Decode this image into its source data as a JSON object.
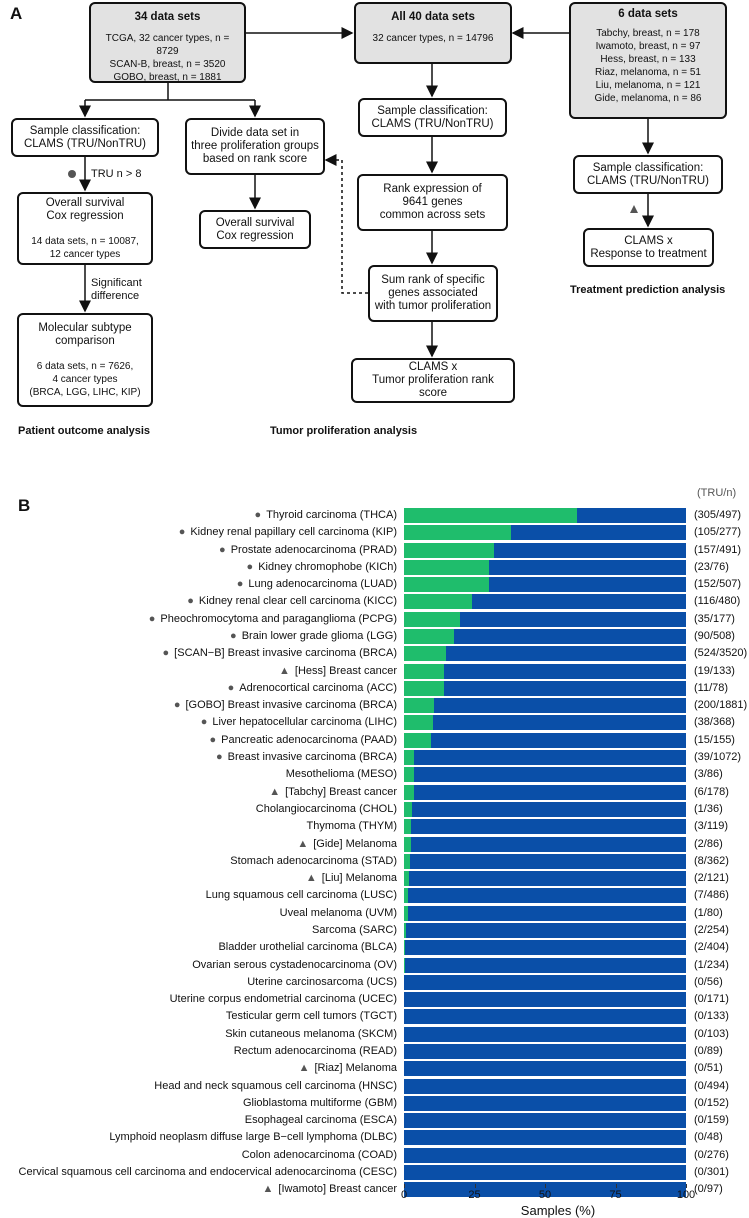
{
  "panel_a": {
    "label": "A",
    "box_34": {
      "title": "34 data sets",
      "lines": [
        "TCGA, 32 cancer types, n = 8729",
        "SCAN-B, breast, n = 3520",
        "GOBO, breast, n = 1881"
      ]
    },
    "box_40": {
      "title": "All 40 data sets",
      "lines": [
        "32 cancer types, n = 14796"
      ]
    },
    "box_6": {
      "title": "6 data sets",
      "lines": [
        "Tabchy, breast, n = 178",
        "Iwamoto, breast, n = 97",
        "Hess, breast, n = 133",
        "Riaz, melanoma, n = 51",
        "Liu, melanoma, n = 121",
        "Gide, melanoma, n = 86"
      ]
    },
    "left_classification": [
      "Sample classification:",
      "CLAMS (TRU/NonTRU)"
    ],
    "left_cox": [
      "Overall survival",
      "Cox regression"
    ],
    "left_cox_detail": [
      "14 data sets, n = 10087,",
      "12 cancer types"
    ],
    "molecular": [
      "Molecular subtype",
      "comparison"
    ],
    "molecular_detail": [
      "6 data sets, n = 7626,",
      "4 cancer types",
      "(BRCA, LGG, LIHC, KIP)"
    ],
    "divide": [
      "Divide data set in",
      "three proliferation groups",
      "based on rank score"
    ],
    "divide_cox": [
      "Overall survival",
      "Cox regression"
    ],
    "mid_classification": [
      "Sample classification:",
      "CLAMS (TRU/NonTRU)"
    ],
    "rank": [
      "Rank expression of",
      "9641 genes",
      "common across sets"
    ],
    "sum_rank": [
      "Sum rank of specific",
      "genes associated",
      "with tumor proliferation"
    ],
    "clams_tumor": [
      "CLAMS x",
      "Tumor proliferation rank score"
    ],
    "right_classification": [
      "Sample classification:",
      "CLAMS (TRU/NonTRU)"
    ],
    "clams_response": [
      "CLAMS x",
      "Response to treatment"
    ],
    "tru_note": "TRU n > 8",
    "significant_note": [
      "Significant",
      "difference"
    ],
    "section_labels": {
      "patient": "Patient outcome analysis",
      "tumor": "Tumor proliferation analysis",
      "treatment": "Treatment prediction analysis"
    }
  },
  "chart_data": {
    "type": "bar",
    "stacked": true,
    "orientation": "horizontal",
    "panel_label": "B",
    "count_header": "(TRU/n)",
    "xlabel": "Samples (%)",
    "xlim": [
      0,
      100
    ],
    "xticks": [
      "0",
      "25",
      "50",
      "75",
      "100"
    ],
    "series": [
      {
        "name": "TRU",
        "color": "#1fbd6c"
      },
      {
        "name": "NonTRU",
        "color": "#0a4fa8"
      }
    ],
    "rows": [
      {
        "label": "Thyroid carcinoma (THCA)",
        "marker": "circle",
        "tru": 305,
        "n": 497,
        "count": "(305/497)"
      },
      {
        "label": "Kidney renal papillary cell carcinoma (KIP)",
        "marker": "circle",
        "tru": 105,
        "n": 277,
        "count": "(105/277)"
      },
      {
        "label": "Prostate adenocarcinoma (PRAD)",
        "marker": "circle",
        "tru": 157,
        "n": 491,
        "count": "(157/491)"
      },
      {
        "label": "Kidney chromophobe (KICh)",
        "marker": "circle",
        "tru": 23,
        "n": 76,
        "count": "(23/76)"
      },
      {
        "label": "Lung adenocarcinoma (LUAD)",
        "marker": "circle",
        "tru": 152,
        "n": 507,
        "count": "(152/507)"
      },
      {
        "label": "Kidney renal clear cell carcinoma (KICC)",
        "marker": "circle",
        "tru": 116,
        "n": 480,
        "count": "(116/480)"
      },
      {
        "label": "Pheochromocytoma and paraganglioma (PCPG)",
        "marker": "circle",
        "tru": 35,
        "n": 177,
        "count": "(35/177)"
      },
      {
        "label": "Brain lower grade glioma (LGG)",
        "marker": "circle",
        "tru": 90,
        "n": 508,
        "count": "(90/508)"
      },
      {
        "label": "[SCAN−B] Breast invasive carcinoma (BRCA)",
        "marker": "circle",
        "tru": 524,
        "n": 3520,
        "count": "(524/3520)"
      },
      {
        "label": "[Hess] Breast cancer",
        "marker": "triangle",
        "tru": 19,
        "n": 133,
        "count": "(19/133)"
      },
      {
        "label": "Adrenocortical carcinoma (ACC)",
        "marker": "circle",
        "tru": 11,
        "n": 78,
        "count": "(11/78)"
      },
      {
        "label": "[GOBO] Breast invasive carcinoma (BRCA)",
        "marker": "circle",
        "tru": 200,
        "n": 1881,
        "count": "(200/1881)"
      },
      {
        "label": "Liver hepatocellular carcinoma (LIHC)",
        "marker": "circle",
        "tru": 38,
        "n": 368,
        "count": "(38/368)"
      },
      {
        "label": "Pancreatic adenocarcinoma (PAAD)",
        "marker": "circle",
        "tru": 15,
        "n": 155,
        "count": "(15/155)"
      },
      {
        "label": "Breast invasive carcinoma (BRCA)",
        "marker": "circle",
        "tru": 39,
        "n": 1072,
        "count": "(39/1072)"
      },
      {
        "label": "Mesothelioma (MESO)",
        "marker": "",
        "tru": 3,
        "n": 86,
        "count": "(3/86)"
      },
      {
        "label": "[Tabchy] Breast cancer",
        "marker": "triangle",
        "tru": 6,
        "n": 178,
        "count": "(6/178)"
      },
      {
        "label": "Cholangiocarcinoma (CHOL)",
        "marker": "",
        "tru": 1,
        "n": 36,
        "count": "(1/36)"
      },
      {
        "label": "Thymoma (THYM)",
        "marker": "",
        "tru": 3,
        "n": 119,
        "count": "(3/119)"
      },
      {
        "label": "[Gide] Melanoma",
        "marker": "triangle",
        "tru": 2,
        "n": 86,
        "count": "(2/86)"
      },
      {
        "label": "Stomach adenocarcinoma (STAD)",
        "marker": "",
        "tru": 8,
        "n": 362,
        "count": "(8/362)"
      },
      {
        "label": "[Liu] Melanoma",
        "marker": "triangle",
        "tru": 2,
        "n": 121,
        "count": "(2/121)"
      },
      {
        "label": "Lung squamous cell carcinoma (LUSC)",
        "marker": "",
        "tru": 7,
        "n": 486,
        "count": "(7/486)"
      },
      {
        "label": "Uveal melanoma (UVM)",
        "marker": "",
        "tru": 1,
        "n": 80,
        "count": "(1/80)"
      },
      {
        "label": "Sarcoma (SARC)",
        "marker": "",
        "tru": 2,
        "n": 254,
        "count": "(2/254)"
      },
      {
        "label": "Bladder urothelial carcinoma (BLCA)",
        "marker": "",
        "tru": 2,
        "n": 404,
        "count": "(2/404)"
      },
      {
        "label": "Ovarian serous cystadenocarcinoma (OV)",
        "marker": "",
        "tru": 1,
        "n": 234,
        "count": "(1/234)"
      },
      {
        "label": "Uterine carcinosarcoma (UCS)",
        "marker": "",
        "tru": 0,
        "n": 56,
        "count": "(0/56)"
      },
      {
        "label": "Uterine corpus endometrial carcinoma (UCEC)",
        "marker": "",
        "tru": 0,
        "n": 171,
        "count": "(0/171)"
      },
      {
        "label": "Testicular germ cell tumors (TGCT)",
        "marker": "",
        "tru": 0,
        "n": 133,
        "count": "(0/133)"
      },
      {
        "label": "Skin cutaneous melanoma (SKCM)",
        "marker": "",
        "tru": 0,
        "n": 103,
        "count": "(0/103)"
      },
      {
        "label": "Rectum adenocarcinoma (READ)",
        "marker": "",
        "tru": 0,
        "n": 89,
        "count": "(0/89)"
      },
      {
        "label": "[Riaz] Melanoma",
        "marker": "triangle",
        "tru": 0,
        "n": 51,
        "count": "(0/51)"
      },
      {
        "label": "Head and neck squamous cell carcinoma (HNSC)",
        "marker": "",
        "tru": 0,
        "n": 494,
        "count": "(0/494)"
      },
      {
        "label": "Glioblastoma multiforme (GBM)",
        "marker": "",
        "tru": 0,
        "n": 152,
        "count": "(0/152)"
      },
      {
        "label": "Esophageal carcinoma (ESCA)",
        "marker": "",
        "tru": 0,
        "n": 159,
        "count": "(0/159)"
      },
      {
        "label": "Lymphoid neoplasm diffuse large B−cell lymphoma (DLBC)",
        "marker": "",
        "tru": 0,
        "n": 48,
        "count": "(0/48)"
      },
      {
        "label": "Colon adenocarcinoma (COAD)",
        "marker": "",
        "tru": 0,
        "n": 276,
        "count": "(0/276)"
      },
      {
        "label": "Cervical squamous cell carcinoma and endocervical adenocarcinoma (CESC)",
        "marker": "",
        "tru": 0,
        "n": 301,
        "count": "(0/301)"
      },
      {
        "label": "[Iwamoto] Breast cancer",
        "marker": "triangle",
        "tru": 0,
        "n": 97,
        "count": "(0/97)"
      }
    ]
  }
}
